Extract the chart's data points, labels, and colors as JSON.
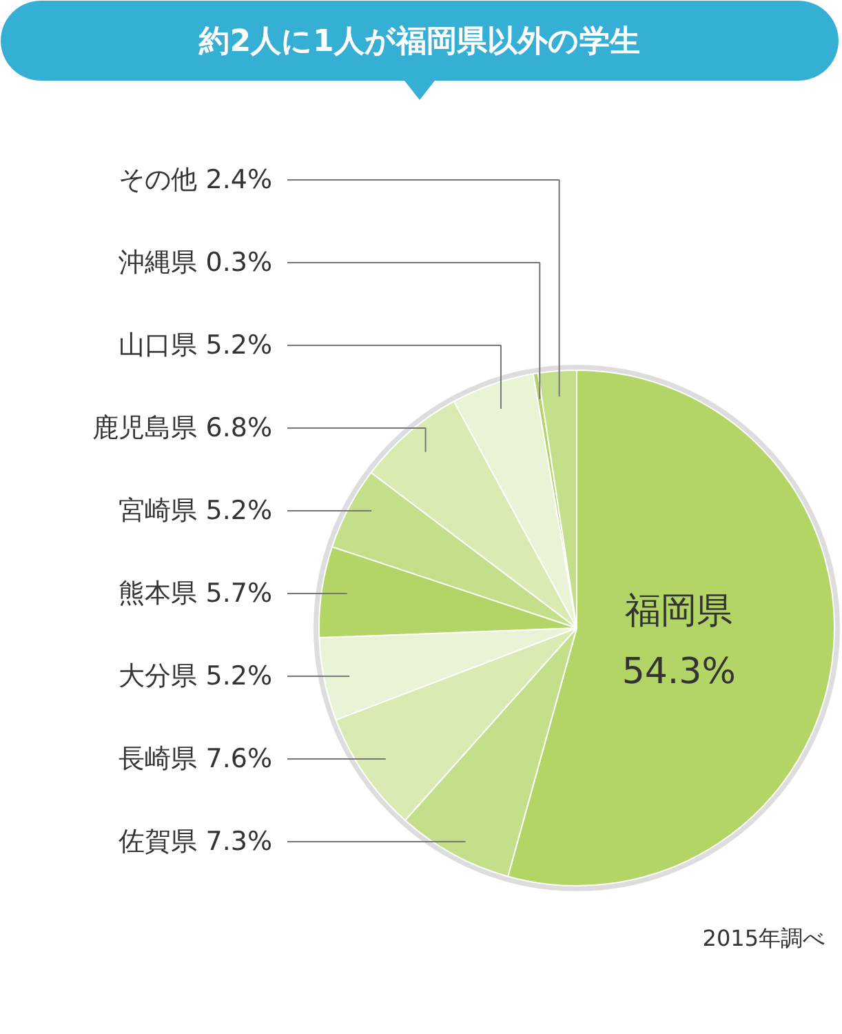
{
  "chart_data": {
    "type": "pie",
    "title": "約2人に1人が福岡県以外の学生",
    "categories": [
      "福岡県",
      "佐賀県",
      "長崎県",
      "大分県",
      "熊本県",
      "宮崎県",
      "鹿児島県",
      "山口県",
      "沖縄県",
      "その他"
    ],
    "values": [
      54.3,
      7.3,
      7.6,
      5.2,
      5.7,
      5.2,
      6.8,
      5.2,
      0.3,
      2.4
    ],
    "value_labels": [
      "54.3%",
      "7.3%",
      "7.6%",
      "5.2%",
      "5.7%",
      "5.2%",
      "6.8%",
      "5.2%",
      "0.3%",
      "2.4%"
    ],
    "colors": [
      "#b3d566",
      "#c4df89",
      "#d9eab2",
      "#e9f3d5",
      "#b3d566",
      "#c4df89",
      "#d9eab2",
      "#e9f3d5",
      "#b3d566",
      "#c4df89"
    ],
    "annotations": [
      "2015年調べ"
    ]
  }
}
